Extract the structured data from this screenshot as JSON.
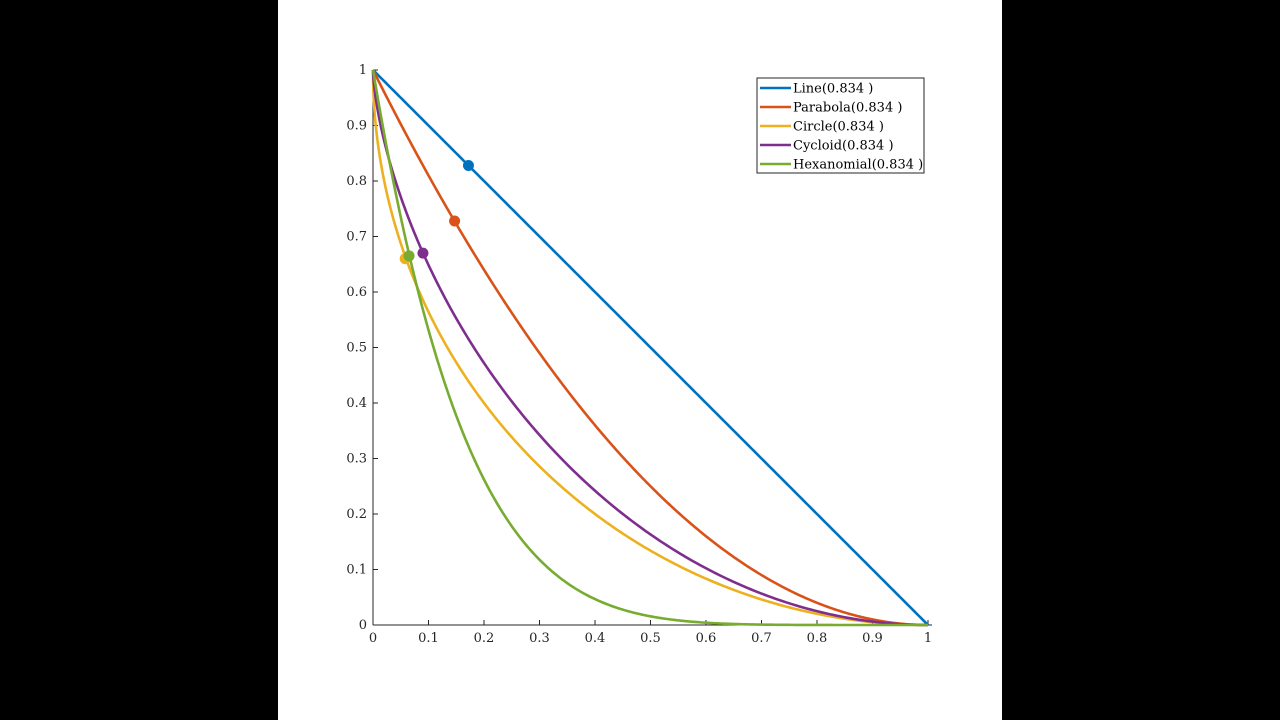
{
  "chart_data": {
    "type": "line",
    "title": "",
    "xlabel": "",
    "ylabel": "",
    "xlim": [
      0,
      1
    ],
    "ylim": [
      0,
      1
    ],
    "grid": false,
    "legend_position": "upper right",
    "x_ticks": [
      "0",
      "0.1",
      "0.2",
      "0.3",
      "0.4",
      "0.5",
      "0.6",
      "0.7",
      "0.8",
      "0.9",
      "1"
    ],
    "y_ticks": [
      "0",
      "0.1",
      "0.2",
      "0.3",
      "0.4",
      "0.5",
      "0.6",
      "0.7",
      "0.8",
      "0.9",
      "1"
    ],
    "series": [
      {
        "name": "Line(0.834 )",
        "color": "#0072BD",
        "formula": "y = 1 - x",
        "x": [
          0,
          0.1,
          0.2,
          0.3,
          0.4,
          0.5,
          0.6,
          0.7,
          0.8,
          0.9,
          1
        ],
        "y": [
          1,
          0.9,
          0.8,
          0.7,
          0.6,
          0.5,
          0.4,
          0.3,
          0.2,
          0.1,
          0
        ],
        "marker": {
          "x": 0.172,
          "y": 0.828
        }
      },
      {
        "name": "Parabola(0.834 )",
        "color": "#D95319",
        "formula": "y = (1 - x)^2",
        "x": [
          0,
          0.1,
          0.2,
          0.3,
          0.4,
          0.5,
          0.6,
          0.7,
          0.8,
          0.9,
          1
        ],
        "y": [
          1,
          0.81,
          0.64,
          0.49,
          0.36,
          0.25,
          0.16,
          0.09,
          0.04,
          0.01,
          0
        ],
        "marker": {
          "x": 0.147,
          "y": 0.728
        }
      },
      {
        "name": "Circle(0.834 )",
        "color": "#EDB120",
        "formula": "y = 1 - sqrt(1 - (1 - x)^2)",
        "x": [
          0,
          0.1,
          0.2,
          0.3,
          0.4,
          0.5,
          0.6,
          0.7,
          0.8,
          0.9,
          1
        ],
        "y": [
          1,
          0.564,
          0.4,
          0.286,
          0.2,
          0.134,
          0.083,
          0.046,
          0.02,
          0.005,
          0
        ],
        "marker": {
          "x": 0.058,
          "y": 0.66
        }
      },
      {
        "name": "Cycloid(0.834 )",
        "color": "#7E2F8E",
        "formula": "x = (t - sin t)/pi, y = (1 + cos t)/2",
        "x": [
          0,
          0.023,
          0.182,
          0.5,
          0.818,
          1
        ],
        "y": [
          1,
          0.854,
          0.5,
          0.214,
          0.05,
          0
        ],
        "marker": {
          "x": 0.09,
          "y": 0.67
        }
      },
      {
        "name": "Hexanomial(0.834 )",
        "color": "#77AC30",
        "formula": "y = (1 - x)^6",
        "x": [
          0,
          0.1,
          0.2,
          0.3,
          0.4,
          0.5,
          0.6,
          0.7,
          0.8,
          0.9,
          1
        ],
        "y": [
          1,
          0.531,
          0.262,
          0.118,
          0.047,
          0.016,
          0.004,
          0.001,
          0,
          0,
          0
        ],
        "marker": {
          "x": 0.065,
          "y": 0.665
        }
      }
    ]
  }
}
